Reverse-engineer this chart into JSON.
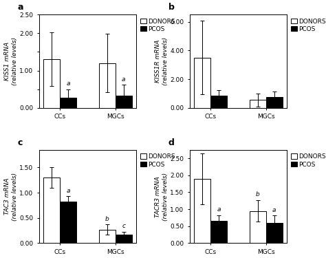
{
  "panels": [
    {
      "label": "a",
      "ylabel_gene": "KISS1",
      "ylabel_rest": " mRNA\n(relative levels)",
      "ylim": [
        0,
        2.5
      ],
      "yticks": [
        0.0,
        0.5,
        1.0,
        1.5,
        2.0,
        2.5
      ],
      "ytick_labels": [
        "0.00",
        "",
        "1.00",
        "",
        "2.00",
        "2.50"
      ],
      "groups": [
        "CCs",
        "MGCs"
      ],
      "donors_vals": [
        1.3,
        1.2
      ],
      "donors_errs": [
        0.72,
        0.78
      ],
      "pcos_vals": [
        0.28,
        0.32
      ],
      "pcos_errs": [
        0.22,
        0.3
      ],
      "sig_labels_pcos": [
        "a",
        "a"
      ],
      "sig_labels_donors": [
        null,
        null
      ]
    },
    {
      "label": "b",
      "ylabel_gene": "KISS1R",
      "ylabel_rest": " mRNA\n(relative levels)",
      "ylim": [
        0,
        6.5
      ],
      "yticks": [
        0.0,
        2.0,
        4.0,
        6.0
      ],
      "ytick_labels": [
        "0.00",
        "2.00",
        "4.00",
        "6.00"
      ],
      "groups": [
        "CCs",
        "MGCs"
      ],
      "donors_vals": [
        3.5,
        0.55
      ],
      "donors_errs": [
        2.55,
        0.45
      ],
      "pcos_vals": [
        0.85,
        0.75
      ],
      "pcos_errs": [
        0.38,
        0.38
      ],
      "sig_labels_pcos": [
        null,
        null
      ],
      "sig_labels_donors": [
        null,
        null
      ]
    },
    {
      "label": "c",
      "ylabel_gene": "TAC3",
      "ylabel_rest": " mRNA\n(relative levels)",
      "ylim": [
        0,
        1.85
      ],
      "yticks": [
        0.0,
        0.5,
        1.0,
        1.5
      ],
      "ytick_labels": [
        "0.00",
        "0.50",
        "1.00",
        "1.50"
      ],
      "groups": [
        "CCs",
        "MGCs"
      ],
      "donors_vals": [
        1.3,
        0.27
      ],
      "donors_errs": [
        0.2,
        0.1
      ],
      "pcos_vals": [
        0.83,
        0.17
      ],
      "pcos_errs": [
        0.1,
        0.06
      ],
      "sig_labels_pcos": [
        "a",
        "c"
      ],
      "sig_labels_donors": [
        null,
        "b"
      ]
    },
    {
      "label": "d",
      "ylabel_gene": "TACR3",
      "ylabel_rest": " mRNA\n(relative levels)",
      "ylim": [
        0,
        2.75
      ],
      "yticks": [
        0.0,
        0.5,
        1.0,
        1.5,
        2.0,
        2.5
      ],
      "ytick_labels": [
        "0.00",
        "0.50",
        "1.00",
        "1.50",
        "2.00",
        "2.50"
      ],
      "groups": [
        "CCs",
        "MGCs"
      ],
      "donors_vals": [
        1.9,
        0.95
      ],
      "donors_errs": [
        0.75,
        0.32
      ],
      "pcos_vals": [
        0.65,
        0.6
      ],
      "pcos_errs": [
        0.18,
        0.22
      ],
      "sig_labels_pcos": [
        "a",
        "a"
      ],
      "sig_labels_donors": [
        null,
        "b"
      ]
    }
  ],
  "legend_labels": [
    "DONORS",
    "PCOS"
  ],
  "bar_width": 0.3,
  "donors_color": "#ffffff",
  "pcos_color": "#000000",
  "edge_color": "#000000",
  "background_color": "#ffffff",
  "axes_background": "#ffffff",
  "fontsize_tick": 6.5,
  "fontsize_label": 6.5,
  "fontsize_panel_label": 9,
  "fontsize_legend": 6.5,
  "fontsize_sig": 6.5
}
